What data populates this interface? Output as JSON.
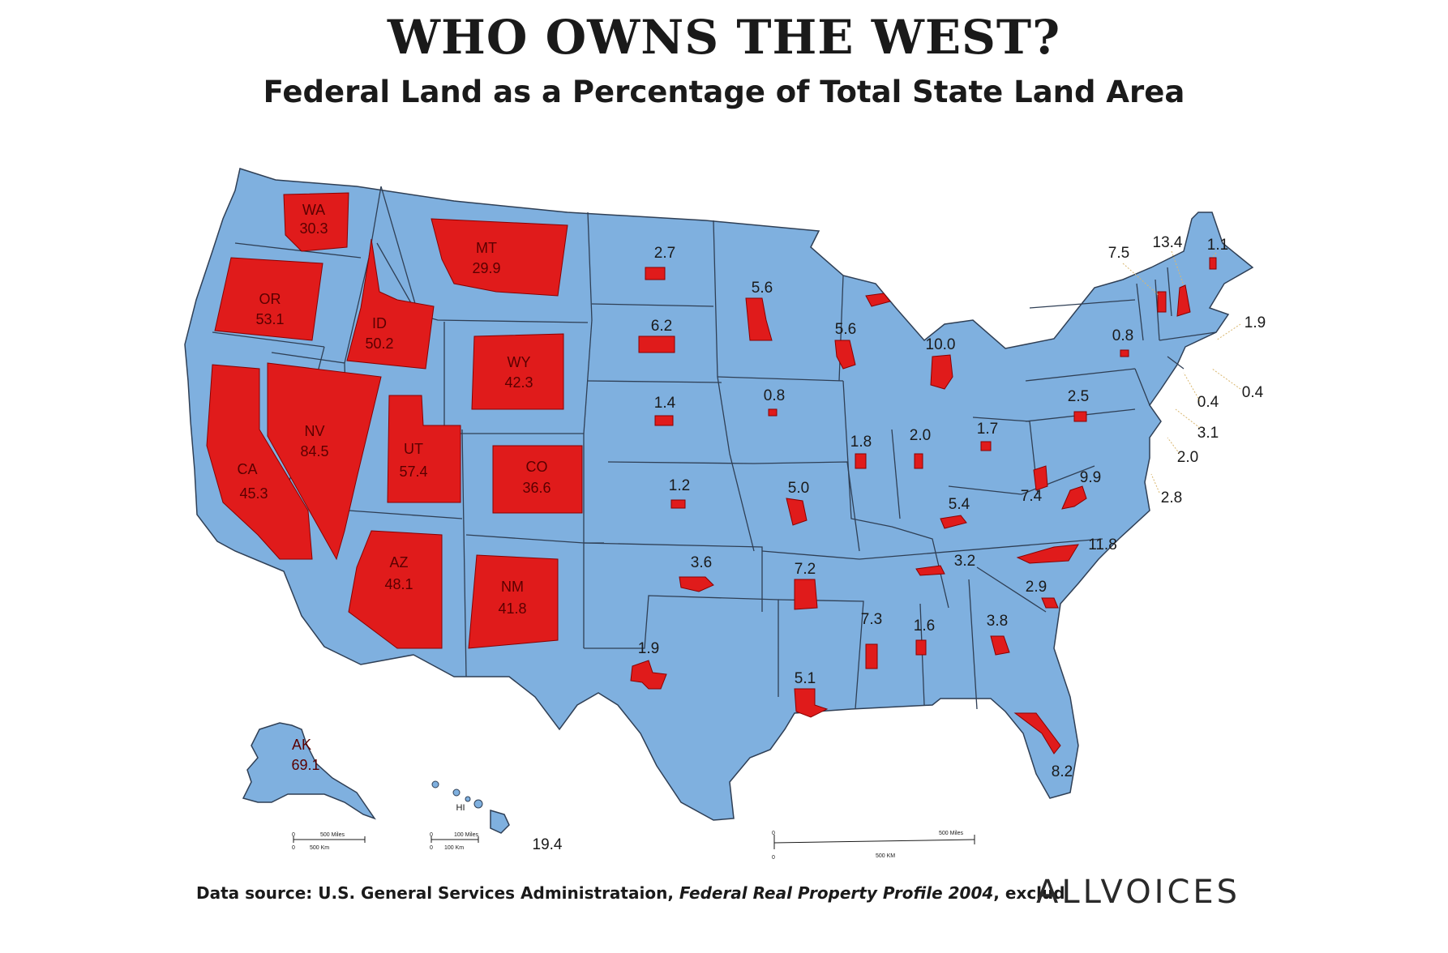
{
  "title": "WHO OWNS THE WEST?",
  "subtitle": "Federal Land as a Percentage of Total State Land Area",
  "colors": {
    "land": "#7fb0df",
    "federal": "#e01b1b",
    "border": "#2f3f55"
  },
  "states": {
    "WA": {
      "abbr": "WA",
      "value": "30.3"
    },
    "OR": {
      "abbr": "OR",
      "value": "53.1"
    },
    "CA": {
      "abbr": "CA",
      "value": "45.3"
    },
    "NV": {
      "abbr": "NV",
      "value": "84.5"
    },
    "ID": {
      "abbr": "ID",
      "value": "50.2"
    },
    "MT": {
      "abbr": "MT",
      "value": "29.9"
    },
    "WY": {
      "abbr": "WY",
      "value": "42.3"
    },
    "UT": {
      "abbr": "UT",
      "value": "57.4"
    },
    "CO": {
      "abbr": "CO",
      "value": "36.6"
    },
    "AZ": {
      "abbr": "AZ",
      "value": "48.1"
    },
    "NM": {
      "abbr": "NM",
      "value": "41.8"
    },
    "AK": {
      "abbr": "AK",
      "value": "69.1"
    },
    "HI": {
      "abbr": "HI",
      "value": "19.4"
    },
    "ND": {
      "value": "2.7"
    },
    "SD": {
      "value": "6.2"
    },
    "NE": {
      "value": "1.4"
    },
    "KS": {
      "value": "1.2"
    },
    "OK": {
      "value": "3.6"
    },
    "TX": {
      "value": "1.9"
    },
    "MN": {
      "value": "5.6"
    },
    "IA": {
      "value": "0.8"
    },
    "MO": {
      "value": "5.0"
    },
    "AR": {
      "value": "7.2"
    },
    "LA": {
      "value": "5.1"
    },
    "WI": {
      "value": "5.6"
    },
    "IL": {
      "value": "1.8"
    },
    "MI": {
      "value": "10.0"
    },
    "IN": {
      "value": "2.0"
    },
    "OH": {
      "value": "1.7"
    },
    "KY": {
      "value": "5.4"
    },
    "TN": {
      "value": "3.2"
    },
    "MS": {
      "value": "7.3"
    },
    "AL": {
      "value": "1.6"
    },
    "GA": {
      "value": "3.8"
    },
    "FL": {
      "value": "8.2"
    },
    "SC": {
      "value": "2.9"
    },
    "NC": {
      "value": "11.8"
    },
    "VA": {
      "value": "9.9"
    },
    "WV": {
      "value": "7.4"
    },
    "PA": {
      "value": "2.5"
    },
    "NY": {
      "value": "0.8"
    },
    "VT": {
      "value": "7.5"
    },
    "NH": {
      "value": "13.4"
    },
    "ME": {
      "value": "1.1"
    },
    "MA": {
      "value": "1.9"
    },
    "RI": {
      "value": "0.4"
    },
    "CT": {
      "value": "0.4"
    },
    "NJ": {
      "value": "3.1"
    },
    "DE": {
      "value": "2.0"
    },
    "MD": {
      "value": "2.8"
    }
  },
  "scales": {
    "alaska": {
      "miles": "500 Miles",
      "km": "500 Km",
      "zero": "0"
    },
    "hawaii": {
      "miles": "100 Miles",
      "km": "100 Km",
      "zero": "0"
    },
    "main": {
      "miles": "500 Miles",
      "km": "500 KM",
      "zero": "0"
    }
  },
  "footer": {
    "prefix": "Data source: U.S. General Services Administrataion, ",
    "publication": "Federal Real Property Profile 2004",
    "suffix": ", exclud"
  },
  "brand": "ALLVOICES"
}
